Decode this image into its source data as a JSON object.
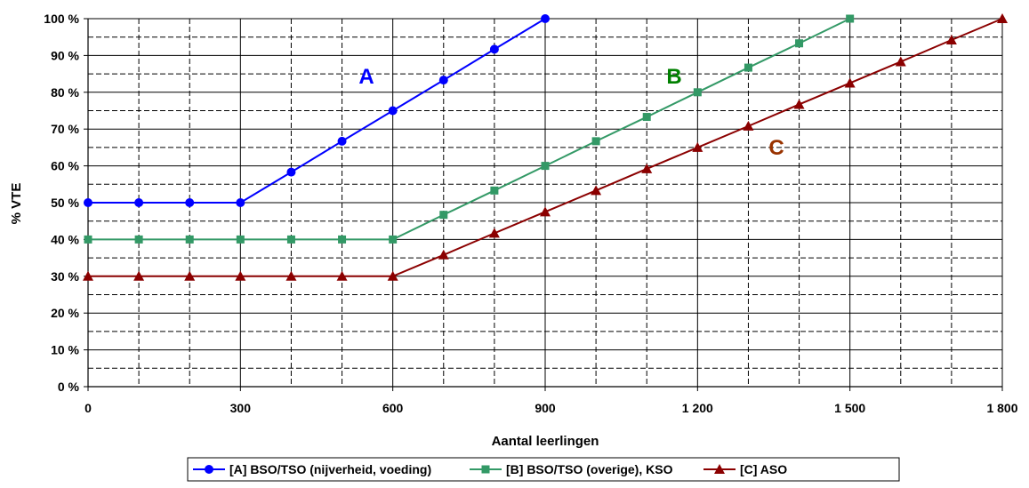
{
  "chart_data": {
    "type": "line",
    "title": "",
    "xlabel": "Aantal leerlingen",
    "ylabel": "% VTE",
    "xlim": [
      0,
      1800
    ],
    "ylim": [
      0,
      100
    ],
    "x_ticks": [
      {
        "value": 0,
        "label": "0"
      },
      {
        "value": 300,
        "label": "300"
      },
      {
        "value": 600,
        "label": "600"
      },
      {
        "value": 900,
        "label": "900"
      },
      {
        "value": 1200,
        "label": "1 200"
      },
      {
        "value": 1500,
        "label": "1 500"
      },
      {
        "value": 1800,
        "label": "1 800"
      }
    ],
    "y_ticks": [
      {
        "value": 0,
        "label": "0 %"
      },
      {
        "value": 10,
        "label": "10 %"
      },
      {
        "value": 20,
        "label": "20 %"
      },
      {
        "value": 30,
        "label": "30 %"
      },
      {
        "value": 40,
        "label": "40 %"
      },
      {
        "value": 50,
        "label": "50 %"
      },
      {
        "value": 60,
        "label": "60 %"
      },
      {
        "value": 70,
        "label": "70 %"
      },
      {
        "value": 80,
        "label": "80 %"
      },
      {
        "value": 90,
        "label": "90 %"
      },
      {
        "value": 100,
        "label": "100 %"
      }
    ],
    "grid": "major solid, minor dashed",
    "legend_position": "bottom",
    "series": [
      {
        "name": "[A] BSO/TSO (nijverheid, voeding)",
        "label": "A",
        "color": "#0000ff",
        "marker": "circle",
        "x": [
          0,
          100,
          200,
          300,
          400,
          500,
          600,
          700,
          800,
          900
        ],
        "y": [
          50,
          50,
          50,
          50,
          58.3,
          66.7,
          75,
          83.3,
          91.7,
          100
        ]
      },
      {
        "name": "[B] BSO/TSO (overige), KSO",
        "label": "B",
        "color": "#339966",
        "label_color": "#008000",
        "marker": "square",
        "x": [
          0,
          100,
          200,
          300,
          400,
          500,
          600,
          700,
          800,
          900,
          1000,
          1100,
          1200,
          1300,
          1400,
          1500
        ],
        "y": [
          40,
          40,
          40,
          40,
          40,
          40,
          40,
          46.7,
          53.3,
          60,
          66.7,
          73.3,
          80,
          86.7,
          93.3,
          100
        ]
      },
      {
        "name": "[C] ASO",
        "label": "C",
        "color": "#8b0000",
        "label_color": "#993300",
        "marker": "triangle",
        "x": [
          0,
          100,
          200,
          300,
          400,
          500,
          600,
          700,
          800,
          900,
          1000,
          1100,
          1200,
          1300,
          1400,
          1500,
          1600,
          1700,
          1800
        ],
        "y": [
          30,
          30,
          30,
          30,
          30,
          30,
          30,
          35.8,
          41.7,
          47.5,
          53.3,
          59.2,
          65,
          70.8,
          76.7,
          82.5,
          88.3,
          94.2,
          100
        ]
      }
    ]
  }
}
